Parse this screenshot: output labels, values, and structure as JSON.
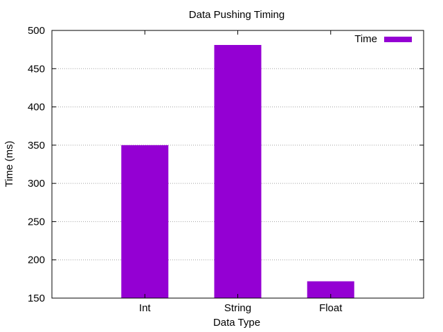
{
  "chart_data": {
    "type": "bar",
    "title": "Data Pushing Timing",
    "xlabel": "Data Type",
    "ylabel": "Time (ms)",
    "categories": [
      "Int",
      "String",
      "Float"
    ],
    "series": [
      {
        "name": "Time",
        "values": [
          350,
          481,
          172
        ],
        "color": "#9400d3"
      }
    ],
    "ylim": [
      150,
      500
    ],
    "yticks": [
      150,
      200,
      250,
      300,
      350,
      400,
      450,
      500
    ],
    "grid": "horizontal-dotted",
    "legend": "top-right"
  }
}
